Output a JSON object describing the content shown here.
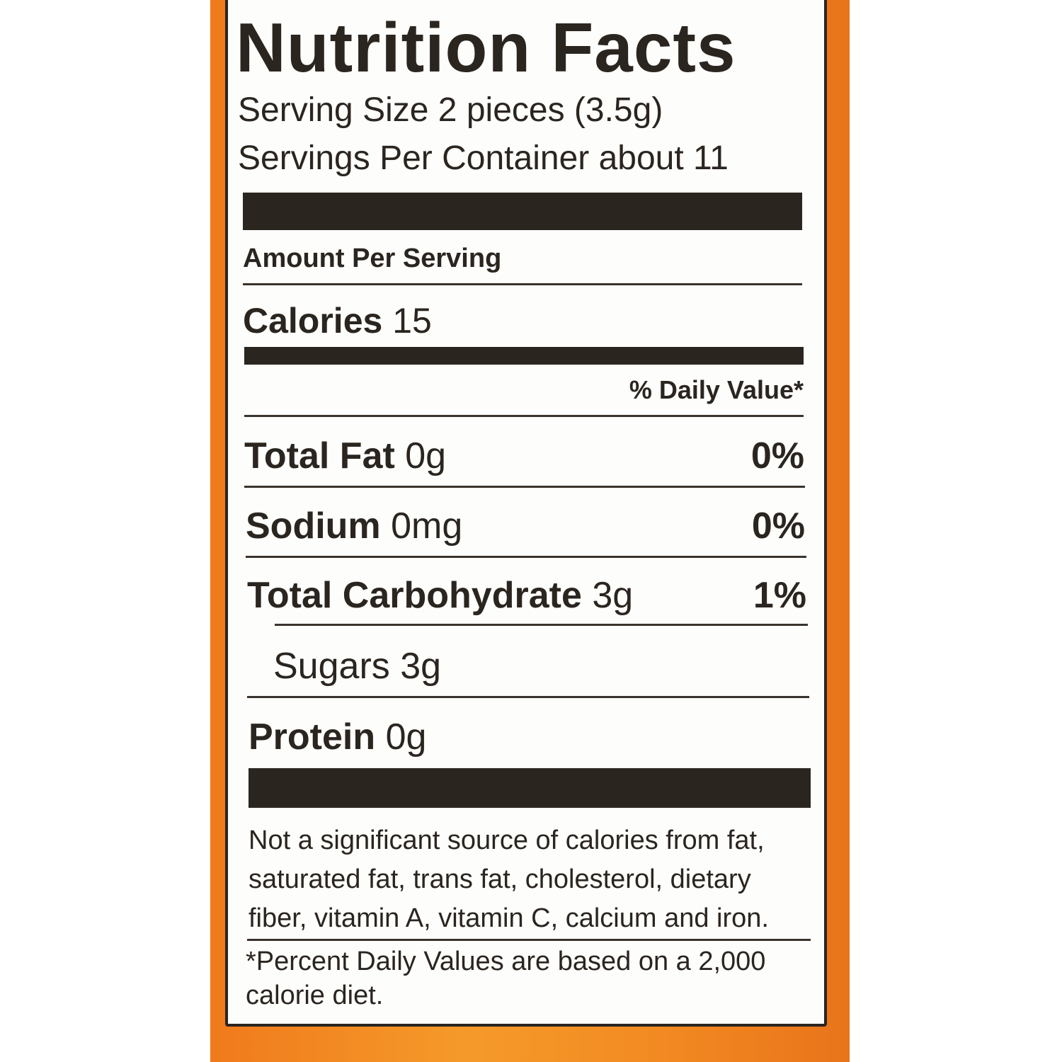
{
  "title": "Nutrition Facts",
  "serving_size": "Serving Size 2 pieces (3.5g)",
  "servings_per_container": "Servings Per Container about 11",
  "amount_per_serving": "Amount Per Serving",
  "calories": {
    "label": "Calories",
    "value": "15"
  },
  "daily_value_header": "% Daily Value*",
  "nutrients": [
    {
      "name": "Total Fat",
      "amount": "0g",
      "dv": "0%"
    },
    {
      "name": "Sodium",
      "amount": "0mg",
      "dv": "0%"
    },
    {
      "name": "Total Carbohydrate",
      "amount": "3g",
      "dv": "1%"
    },
    {
      "name": "Sugars",
      "amount": "3g"
    },
    {
      "name": "Protein",
      "amount": "0g"
    }
  ],
  "footnote_sources": "Not a significant source of calories from fat, saturated fat, trans fat, cholesterol, dietary fiber, vitamin A, vitamin C, calcium and iron.",
  "footnote_dv": "*Percent Daily Values are based on a 2,000 calorie diet."
}
